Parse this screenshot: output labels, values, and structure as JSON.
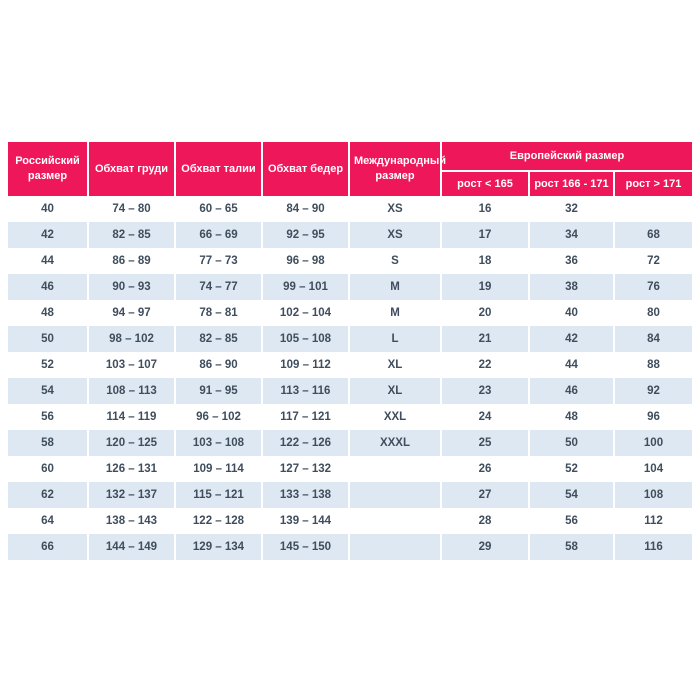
{
  "colors": {
    "header_bg": "#EE1759",
    "header_text": "#ffffff",
    "row_bg": "#ffffff",
    "row_alt_bg": "#DDE8F3",
    "cell_text": "#3F4D5C",
    "page_bg": "#ffffff"
  },
  "chart_data": {
    "type": "table",
    "title": "",
    "headers": {
      "russian_size": "Российский размер",
      "chest": "Обхват груди",
      "waist": "Обхват талии",
      "hips": "Обхват бедер",
      "international": "Международный размер",
      "european": "Европейский размер",
      "height_lt_165": "рост < 165",
      "height_166_171": "рост 166 - 171",
      "height_gt_171": "рост > 171"
    },
    "columns": [
      "Российский размер",
      "Обхват груди",
      "Обхват талии",
      "Обхват бедер",
      "Международный размер",
      "Европейский размер / рост < 165",
      "Европейский размер / рост 166 - 171",
      "Европейский размер / рост > 171"
    ],
    "rows": [
      [
        "40",
        "74 – 80",
        "60 – 65",
        "84 – 90",
        "XS",
        "16",
        "32",
        ""
      ],
      [
        "42",
        "82 – 85",
        "66 – 69",
        "92 – 95",
        "XS",
        "17",
        "34",
        "68"
      ],
      [
        "44",
        "86 – 89",
        "77 – 73",
        "96 – 98",
        "S",
        "18",
        "36",
        "72"
      ],
      [
        "46",
        "90 – 93",
        "74 – 77",
        "99 – 101",
        "M",
        "19",
        "38",
        "76"
      ],
      [
        "48",
        "94 – 97",
        "78 – 81",
        "102 – 104",
        "M",
        "20",
        "40",
        "80"
      ],
      [
        "50",
        "98 – 102",
        "82 – 85",
        "105 – 108",
        "L",
        "21",
        "42",
        "84"
      ],
      [
        "52",
        "103 – 107",
        "86 – 90",
        "109 – 112",
        "XL",
        "22",
        "44",
        "88"
      ],
      [
        "54",
        "108 – 113",
        "91 – 95",
        "113 – 116",
        "XL",
        "23",
        "46",
        "92"
      ],
      [
        "56",
        "114 – 119",
        "96 – 102",
        "117 – 121",
        "XXL",
        "24",
        "48",
        "96"
      ],
      [
        "58",
        "120 – 125",
        "103 – 108",
        "122 – 126",
        "XXXL",
        "25",
        "50",
        "100"
      ],
      [
        "60",
        "126 – 131",
        "109 – 114",
        "127 – 132",
        "",
        "26",
        "52",
        "104"
      ],
      [
        "62",
        "132 – 137",
        "115 – 121",
        "133 – 138",
        "",
        "27",
        "54",
        "108"
      ],
      [
        "64",
        "138 – 143",
        "122 – 128",
        "139 – 144",
        "",
        "28",
        "56",
        "112"
      ],
      [
        "66",
        "144 – 149",
        "129 – 134",
        "145 – 150",
        "",
        "29",
        "58",
        "116"
      ]
    ]
  }
}
